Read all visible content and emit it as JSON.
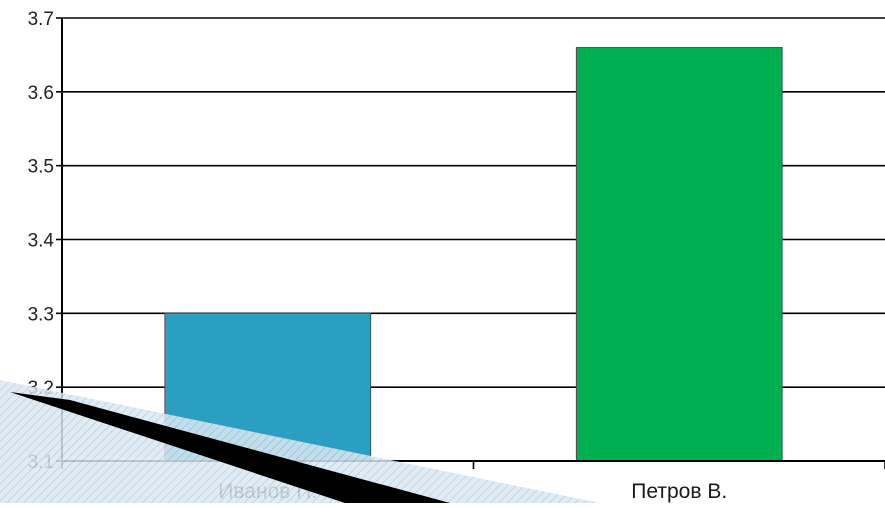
{
  "chart_data": {
    "type": "bar",
    "categories": [
      "Иванов П.",
      "Петров В."
    ],
    "values": [
      3.3,
      3.66
    ],
    "ylim": [
      3.1,
      3.7
    ],
    "yticks": [
      "3.1",
      "3.2",
      "3.3",
      "3.4",
      "3.5",
      "3.6",
      "3.7"
    ],
    "grid": true,
    "legend": "none",
    "bar_colors": [
      "#2b9fc2",
      "#00b050"
    ]
  },
  "colors": {
    "axis": "#000000",
    "grid": "#000000",
    "bar_stroke": "#4d4d4d",
    "decor_light": "#dbe9f3",
    "decor_dark": "#000000"
  }
}
